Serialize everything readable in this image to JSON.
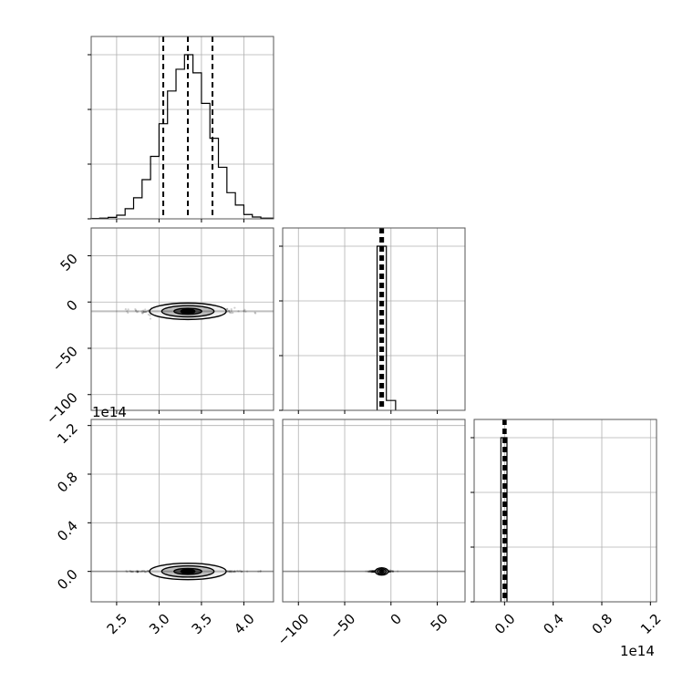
{
  "chart_data": {
    "type": "corner",
    "title": "",
    "parameters": [
      {
        "index": 0,
        "range": [
          2.2,
          4.35
        ],
        "ticks": [
          2.5,
          3.0,
          3.5,
          4.0
        ],
        "tick_labels": [
          "2.5",
          "3.0",
          "3.5",
          "4.0"
        ],
        "quantiles": [
          3.05,
          3.34,
          3.63
        ]
      },
      {
        "index": 1,
        "range": [
          -117,
          80
        ],
        "ticks": [
          -100,
          -50,
          0,
          50
        ],
        "tick_labels": [
          "−100",
          "−50",
          "0",
          "50"
        ],
        "quantiles": [
          -11.5,
          -10.0,
          -8.5
        ]
      },
      {
        "index": 2,
        "range": [
          -0.25,
          1.25
        ],
        "ticks": [
          0.0,
          0.4,
          0.8,
          1.2
        ],
        "tick_labels": [
          "0.0",
          "0.4",
          "0.8",
          "1.2"
        ],
        "offset_label": "1e14",
        "quantiles": [
          -0.01,
          0.0,
          0.01
        ]
      }
    ],
    "histograms": [
      {
        "param": 0,
        "bin_edges": [
          2.2,
          2.3,
          2.4,
          2.5,
          2.6,
          2.7,
          2.8,
          2.9,
          3.0,
          3.1,
          3.2,
          3.3,
          3.4,
          3.5,
          3.6,
          3.7,
          3.8,
          3.9,
          4.0,
          4.1,
          4.2,
          4.35
        ],
        "counts": [
          1,
          2,
          4,
          10,
          28,
          58,
          108,
          172,
          262,
          352,
          412,
          452,
          402,
          318,
          222,
          142,
          72,
          38,
          12,
          5,
          2
        ]
      },
      {
        "param": 1,
        "bins": [
          -15,
          -5,
          5
        ],
        "counts": [
          1000,
          60
        ]
      },
      {
        "param": 2,
        "bins": [
          -0.03,
          0.02
        ],
        "counts": [
          1000
        ]
      }
    ],
    "contours": [
      {
        "pair": [
          0,
          1
        ],
        "center": [
          3.34,
          -10
        ],
        "levels_sigma": [
          0.5,
          1.0,
          1.5
        ]
      },
      {
        "pair": [
          0,
          2
        ],
        "center": [
          3.34,
          0.0
        ],
        "levels_sigma": [
          0.5,
          1.0,
          1.5
        ]
      },
      {
        "pair": [
          1,
          2
        ],
        "center": [
          -10,
          0.0
        ],
        "levels_sigma": [
          0.5,
          1.0,
          1.5
        ]
      }
    ],
    "grid": true,
    "legend": "none"
  }
}
